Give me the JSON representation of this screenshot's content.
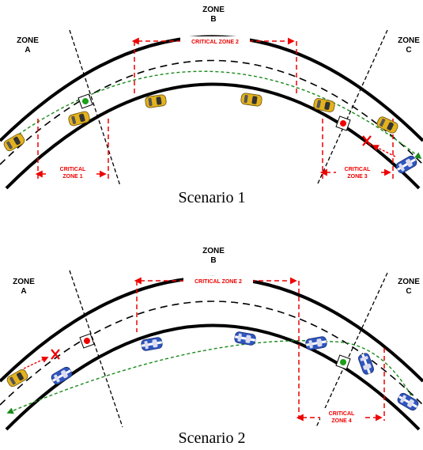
{
  "scenarios": [
    {
      "zones": [
        [
          "ZONE",
          "A"
        ],
        [
          "ZONE",
          "B"
        ],
        [
          "ZONE",
          "C"
        ]
      ],
      "critical_zones": [
        [
          "CRITICAL",
          "ZONE 1"
        ],
        [
          "CRITICAL ZONE 2"
        ],
        [
          "CRITICAL",
          "ZONE 3"
        ]
      ],
      "caption": "Scenario 1"
    },
    {
      "zones": [
        [
          "ZONE",
          "A"
        ],
        [
          "ZONE",
          "B"
        ],
        [
          "ZONE",
          "C"
        ]
      ],
      "critical_zones": [
        [
          "CRITICAL ZONE 2"
        ],
        [
          "CRITICAL",
          "ZONE 4"
        ]
      ],
      "caption": "Scenario 2"
    }
  ]
}
